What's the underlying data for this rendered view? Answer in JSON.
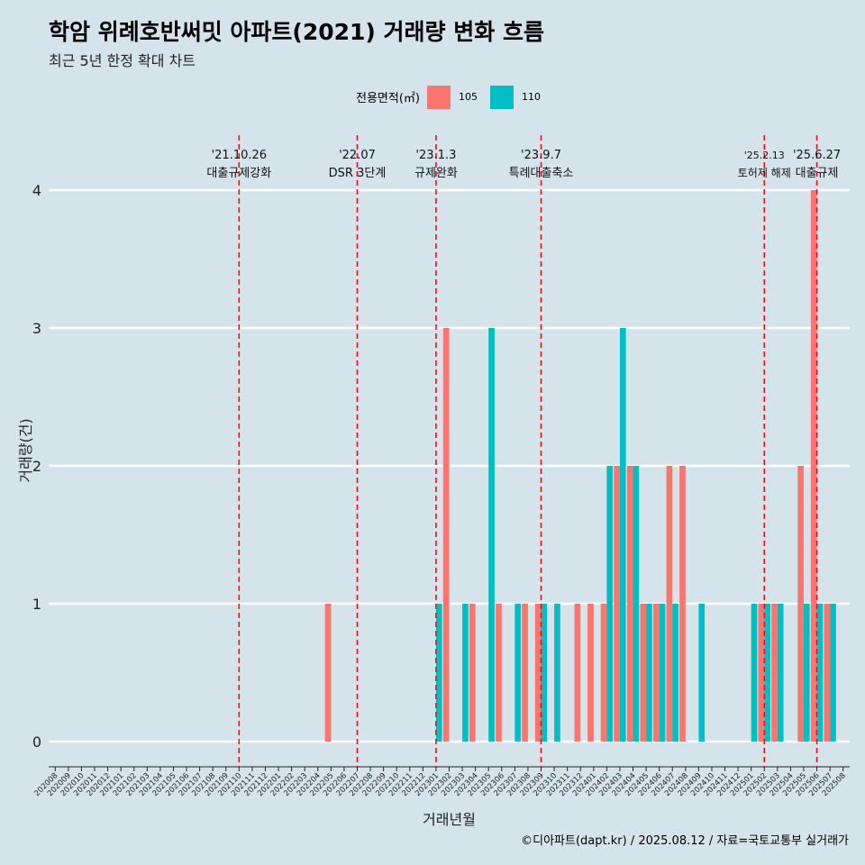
{
  "title": "학암 위례호반써밋 아파트(2021) 거래량 변화 흐름",
  "subtitle": "최근 5년 한정 확대 차트",
  "legend": {
    "title": "전용면적(㎡)",
    "items": [
      {
        "label": "105",
        "color": "#f8766d"
      },
      {
        "label": "110",
        "color": "#00bfc4"
      }
    ]
  },
  "caption": "©디아파트(dapt.kr) / 2025.08.12 / 자료=국토교통부 실거래가",
  "chart_data": {
    "type": "bar",
    "xlabel": "거래년월",
    "ylabel": "거래량(건)",
    "ylim": [
      0,
      4
    ],
    "yticks": [
      0,
      1,
      2,
      3,
      4
    ],
    "grid": true,
    "legend_position": "top",
    "categories": [
      "202008",
      "202009",
      "202010",
      "202011",
      "202012",
      "202101",
      "202102",
      "202103",
      "202104",
      "202105",
      "202106",
      "202107",
      "202108",
      "202109",
      "202110",
      "202111",
      "202112",
      "202201",
      "202202",
      "202203",
      "202204",
      "202205",
      "202206",
      "202207",
      "202208",
      "202209",
      "202210",
      "202211",
      "202212",
      "202301",
      "202302",
      "202303",
      "202304",
      "202305",
      "202306",
      "202307",
      "202308",
      "202309",
      "202310",
      "202311",
      "202312",
      "202401",
      "202402",
      "202403",
      "202404",
      "202405",
      "202406",
      "202407",
      "202408",
      "202409",
      "202410",
      "202411",
      "202412",
      "202501",
      "202502",
      "202503",
      "202504",
      "202505",
      "202506",
      "202507",
      "202508"
    ],
    "series": [
      {
        "name": "105",
        "color": "#f8766d",
        "values": [
          0,
          0,
          0,
          0,
          0,
          0,
          0,
          0,
          0,
          0,
          0,
          0,
          0,
          0,
          0,
          0,
          0,
          0,
          0,
          0,
          0,
          1,
          0,
          0,
          0,
          0,
          0,
          0,
          0,
          0,
          3,
          0,
          1,
          0,
          1,
          0,
          1,
          1,
          0,
          0,
          1,
          1,
          1,
          2,
          2,
          1,
          1,
          2,
          2,
          0,
          0,
          0,
          0,
          0,
          1,
          1,
          0,
          2,
          4,
          1,
          0
        ]
      },
      {
        "name": "110",
        "color": "#00bfc4",
        "values": [
          0,
          0,
          0,
          0,
          0,
          0,
          0,
          0,
          0,
          0,
          0,
          0,
          0,
          0,
          0,
          0,
          0,
          0,
          0,
          0,
          0,
          0,
          0,
          0,
          0,
          0,
          0,
          0,
          0,
          1,
          0,
          1,
          0,
          3,
          0,
          1,
          0,
          1,
          1,
          0,
          0,
          0,
          2,
          3,
          2,
          1,
          1,
          1,
          0,
          1,
          0,
          0,
          0,
          1,
          1,
          1,
          0,
          1,
          1,
          1,
          0
        ]
      }
    ],
    "events": [
      {
        "date": "'21.10.26",
        "text": "대출규제강화",
        "category": "202110"
      },
      {
        "date": "'22.07",
        "text": "DSR 3단계",
        "category": "202207"
      },
      {
        "date": "'23.1.3",
        "text": "규제완화",
        "category": "202301"
      },
      {
        "date": "'23.9.7",
        "text": "특례대출축소",
        "category": "202309"
      },
      {
        "date": "'25.2.13",
        "text": "토허제 해제",
        "category": "202502"
      },
      {
        "date": "'25.6.27",
        "text": "대출규제",
        "category": "202506"
      }
    ]
  }
}
